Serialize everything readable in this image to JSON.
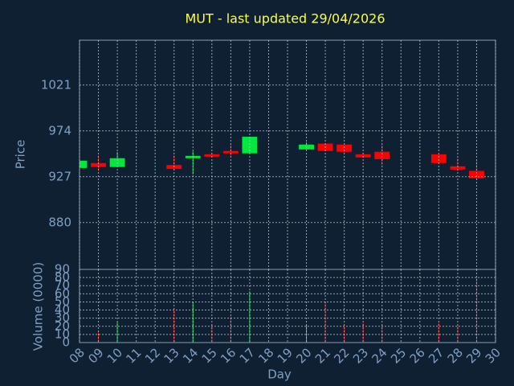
{
  "chart_data": [
    {
      "type": "candlestick",
      "title": "MUT - last updated 29/04/2026",
      "ylabel": "Price",
      "x": [
        8,
        9,
        10,
        13,
        14,
        15,
        16,
        17,
        20,
        21,
        22,
        23,
        24,
        27,
        28,
        29
      ],
      "open": [
        936,
        941,
        937,
        939,
        946,
        950,
        953.4,
        951,
        955,
        961,
        960,
        950,
        952.6,
        950,
        937.7,
        933
      ],
      "high": [
        944,
        949,
        952.5,
        949,
        953,
        951.7,
        960,
        968,
        962.5,
        961,
        960,
        951.7,
        960,
        950,
        946,
        943.5
      ],
      "low": [
        936,
        933,
        937,
        933.6,
        929.5,
        947.6,
        947.6,
        951,
        955,
        953.4,
        951.7,
        946.8,
        939,
        941,
        933,
        923.7
      ],
      "close": [
        943.5,
        937,
        946,
        935,
        948.4,
        947.6,
        951,
        968,
        960,
        953.4,
        952.6,
        946.8,
        945,
        941,
        934.4,
        925.4
      ],
      "up_color": "#00e83a",
      "down_color": "#ff0000",
      "xlim": [
        8,
        30
      ],
      "ylim": [
        832,
        1067
      ],
      "yticks": [
        880,
        927,
        974,
        1021
      ],
      "grid": true
    },
    {
      "type": "bar",
      "ylabel": "Volume (0000)",
      "xlabel": "Day",
      "x": [
        8,
        9,
        10,
        13,
        14,
        15,
        16,
        17,
        20,
        21,
        22,
        23,
        24,
        27,
        28,
        29
      ],
      "values": [
        0,
        13,
        25,
        40,
        50,
        22,
        32,
        63,
        22,
        49,
        21,
        24,
        22,
        24,
        21,
        80
      ],
      "xlim": [
        8,
        30
      ],
      "xticks": [
        {
          "value": 8,
          "label": "08"
        },
        {
          "value": 9,
          "label": "09"
        },
        10,
        11,
        12,
        13,
        14,
        15,
        16,
        17,
        18,
        19,
        20,
        21,
        22,
        23,
        24,
        25,
        26,
        27,
        28,
        29,
        30
      ],
      "ylim": [
        0,
        90
      ],
      "yticks": [
        0,
        10,
        20,
        30,
        40,
        50,
        60,
        70,
        80,
        90
      ],
      "grid": true
    }
  ]
}
